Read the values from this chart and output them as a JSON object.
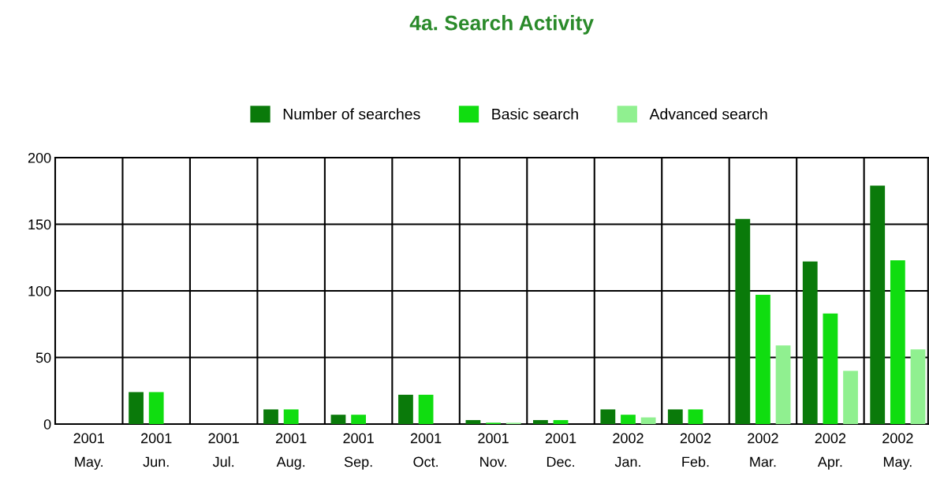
{
  "chart_data": {
    "type": "bar",
    "title": "4a. Search Activity",
    "categories": [
      "2001\nMay.",
      "2001\nJun.",
      "2001\nJul.",
      "2001\nAug.",
      "2001\nSep.",
      "2001\nOct.",
      "2001\nNov.",
      "2001\nDec.",
      "2002\nJan.",
      "2002\nFeb.",
      "2002\nMar.",
      "2002\nApr.",
      "2002\nMay."
    ],
    "series": [
      {
        "name": "Number of searches",
        "color": "#0a7a0a",
        "values": [
          0,
          24,
          0,
          11,
          7,
          22,
          3,
          3,
          11,
          11,
          154,
          122,
          179
        ]
      },
      {
        "name": "Basic search",
        "color": "#10dd10",
        "values": [
          0,
          24,
          0,
          11,
          7,
          22,
          1,
          3,
          7,
          11,
          97,
          83,
          123
        ]
      },
      {
        "name": "Advanced search",
        "color": "#90f090",
        "values": [
          0,
          0,
          0,
          0,
          0,
          0,
          1,
          0,
          5,
          0,
          59,
          40,
          56
        ]
      }
    ],
    "ylim": [
      0,
      200
    ],
    "yticks": [
      0,
      50,
      100,
      150,
      200
    ],
    "grid": true,
    "legend": "top"
  }
}
